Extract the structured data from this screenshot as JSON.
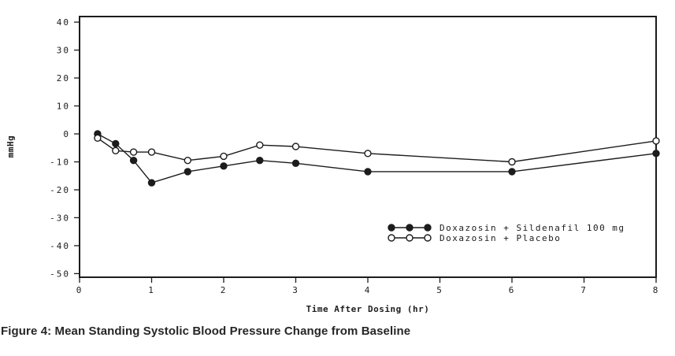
{
  "figure": {
    "caption": "Figure 4: Mean Standing Systolic Blood Pressure Change from Baseline"
  },
  "chart_data": {
    "type": "line",
    "title": "",
    "xlabel": "Time After Dosing (hr)",
    "ylabel": "mmHg",
    "xlim": [
      0,
      8
    ],
    "ylim": [
      -51.3,
      42
    ],
    "x_ticks": [
      0,
      1,
      2,
      3,
      4,
      5,
      6,
      7,
      8
    ],
    "y_ticks": [
      40,
      30,
      20,
      10,
      0,
      -10,
      -20,
      -30,
      -40,
      -50
    ],
    "grid": false,
    "legend_position": "inside-lower-right",
    "x": [
      0.25,
      0.5,
      0.75,
      1,
      1.5,
      2,
      2.5,
      3,
      4,
      6,
      8
    ],
    "series": [
      {
        "name": "Doxazosin + Sildenafil 100 mg",
        "marker": "filled-circle",
        "values": [
          0,
          -3.5,
          -9.5,
          -17.5,
          -13.5,
          -11.5,
          -9.5,
          -10.5,
          -13.5,
          -13.5,
          -7
        ]
      },
      {
        "name": "Doxazosin + Placebo",
        "marker": "open-circle",
        "values": [
          -1.5,
          -6,
          -6.5,
          -6.5,
          -9.5,
          -8,
          -4,
          -4.5,
          -7,
          -10,
          -2.5
        ]
      }
    ],
    "line_color": "#1c1c1c",
    "marker_open_fill": "#ffffff"
  }
}
